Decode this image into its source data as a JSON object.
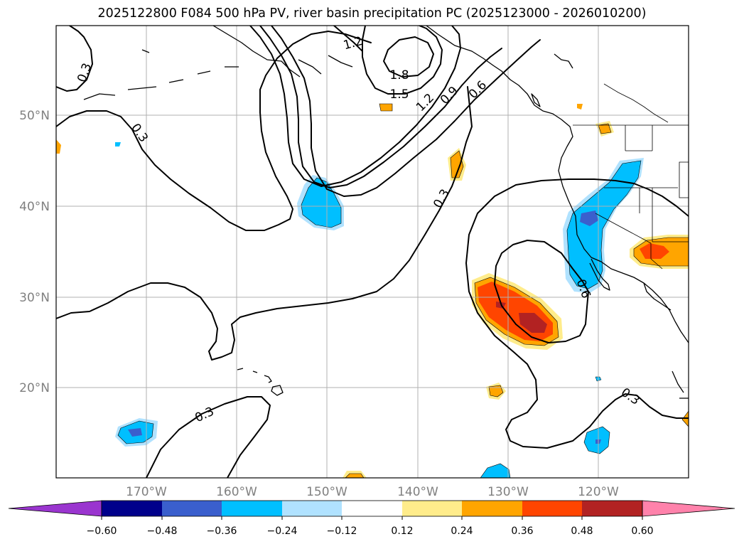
{
  "title": "2025122800 F084 500 hPa PV, river basin precipitation PC (2025123000 - 2026010200)",
  "map": {
    "lon_labels": [
      "170°W",
      "160°W",
      "150°W",
      "140°W",
      "130°W",
      "120°W"
    ],
    "lat_labels": [
      "50°N",
      "40°N",
      "30°N",
      "20°N"
    ],
    "contour_labels": [
      "0.3",
      "0.3",
      "0.3",
      "0.3",
      "0.3",
      "0.6",
      "0.6",
      "0.9",
      "1.2",
      "1.2",
      "1.5",
      "1.8"
    ]
  },
  "colorbar": {
    "colors": [
      "#9a35cf",
      "#00008b",
      "#3a5fcd",
      "#00bfff",
      "#b0e2ff",
      "#ffffff",
      "#ffec8b",
      "#ffa500",
      "#ff4500",
      "#b22222",
      "#ff82ab"
    ],
    "ticks": [
      "−0.60",
      "−0.48",
      "−0.36",
      "−0.24",
      "−0.12",
      "0.12",
      "0.24",
      "0.36",
      "0.48",
      "0.60"
    ]
  }
}
